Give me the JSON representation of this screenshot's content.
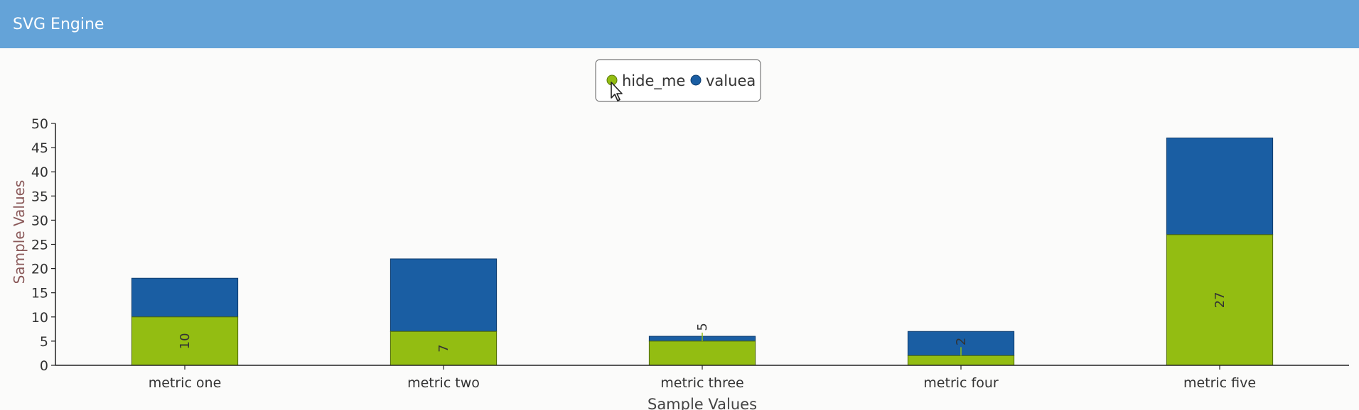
{
  "app": {
    "title": "SVG Engine"
  },
  "colors": {
    "header": "#64a3d8",
    "hide_me": "#93bd12",
    "valuea": "#1a5ea3",
    "axis": "#222222"
  },
  "chart_data": {
    "type": "bar",
    "stacked": true,
    "categories": [
      "metric one",
      "metric two",
      "metric three",
      "metric four",
      "metric five"
    ],
    "series": [
      {
        "name": "hide_me",
        "values": [
          10,
          7,
          5,
          2,
          27
        ],
        "labels": [
          "10",
          "7",
          "5",
          "2",
          "27"
        ]
      },
      {
        "name": "valuea",
        "values": [
          8,
          15,
          1,
          5,
          20
        ]
      }
    ],
    "xlabel": "Sample Values",
    "ylabel": "Sample Values",
    "ylim": [
      0,
      50
    ],
    "yticks": [
      "0",
      "5",
      "10",
      "15",
      "20",
      "25",
      "30",
      "35",
      "40",
      "45",
      "50"
    ],
    "legend": {
      "placement": "top-center",
      "items": [
        "hide_me",
        "valuea"
      ]
    },
    "grid": false
  }
}
